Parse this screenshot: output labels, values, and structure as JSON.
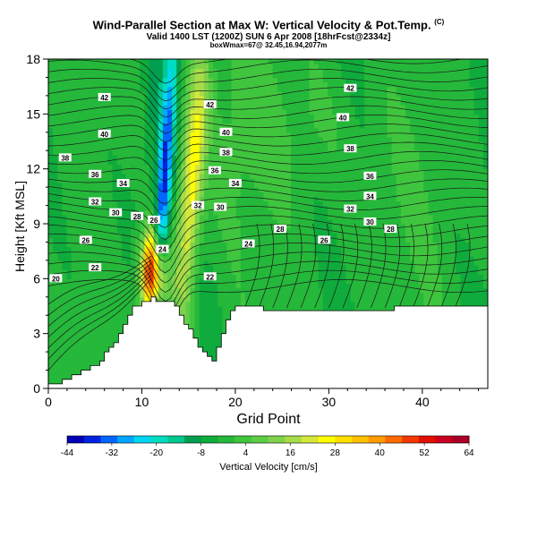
{
  "title": "Wind-Parallel Section at Max W: Vertical Velocity & Pot.Temp.",
  "title_mark": "(C)",
  "subtitle": "Valid 1400 LST (1200Z) SUN 6 Apr 2008 [18hrFcst@2334z]",
  "subtitle2": "boxWmax=67@ 32.45,16.94,2077m",
  "chart_data": {
    "type": "heatmap",
    "xlabel": "Grid Point",
    "ylabel": "Height [Kft MSL]",
    "xlim": [
      0,
      47
    ],
    "ylim": [
      0,
      18
    ],
    "x_ticks": [
      "0",
      "10",
      "20",
      "30",
      "40"
    ],
    "y_ticks": [
      "0",
      "3",
      "6",
      "9",
      "12",
      "15",
      "18"
    ],
    "grid": false,
    "colorbar": {
      "label": "Vertical Velocity [cm/s]",
      "range": [
        -44,
        64
      ],
      "ticks": [
        "-44",
        "-32",
        "-20",
        "-8",
        "4",
        "16",
        "28",
        "40",
        "52",
        "64"
      ],
      "colors": [
        "#0000b4",
        "#0022e0",
        "#0066ff",
        "#00a6ff",
        "#00d6f0",
        "#00dcc0",
        "#00c890",
        "#009f50",
        "#0fab3c",
        "#25b83a",
        "#3fc53e",
        "#5ccd45",
        "#7ed34a",
        "#a8dc48",
        "#d4e83a",
        "#ffff00",
        "#ffe000",
        "#ffc000",
        "#ff9a00",
        "#ff6a00",
        "#f23a00",
        "#e10f00",
        "#c8001e",
        "#aa0028"
      ]
    },
    "contour_variable": "Potential temperature",
    "contour_labels": [
      {
        "x": 6,
        "y": 15.9,
        "v": "42"
      },
      {
        "x": 17.3,
        "y": 15.5,
        "v": "42"
      },
      {
        "x": 32.3,
        "y": 16.4,
        "v": "42"
      },
      {
        "x": 6,
        "y": 13.9,
        "v": "40"
      },
      {
        "x": 19,
        "y": 14.0,
        "v": "40"
      },
      {
        "x": 31.5,
        "y": 14.8,
        "v": "40"
      },
      {
        "x": 1.8,
        "y": 12.6,
        "v": "38"
      },
      {
        "x": 19,
        "y": 12.9,
        "v": "38"
      },
      {
        "x": 32.3,
        "y": 13.1,
        "v": "38"
      },
      {
        "x": 5,
        "y": 11.7,
        "v": "36"
      },
      {
        "x": 17.8,
        "y": 11.9,
        "v": "36"
      },
      {
        "x": 34.4,
        "y": 11.6,
        "v": "36"
      },
      {
        "x": 8,
        "y": 11.2,
        "v": "34"
      },
      {
        "x": 20,
        "y": 11.2,
        "v": "34"
      },
      {
        "x": 34.4,
        "y": 10.5,
        "v": "34"
      },
      {
        "x": 5,
        "y": 10.2,
        "v": "32"
      },
      {
        "x": 16,
        "y": 10.0,
        "v": "32"
      },
      {
        "x": 32.3,
        "y": 9.8,
        "v": "32"
      },
      {
        "x": 7.2,
        "y": 9.6,
        "v": "30"
      },
      {
        "x": 18.4,
        "y": 9.9,
        "v": "30"
      },
      {
        "x": 34.4,
        "y": 9.1,
        "v": "30"
      },
      {
        "x": 9.5,
        "y": 9.4,
        "v": "28"
      },
      {
        "x": 24.8,
        "y": 8.7,
        "v": "28"
      },
      {
        "x": 36.6,
        "y": 8.7,
        "v": "28"
      },
      {
        "x": 4,
        "y": 8.1,
        "v": "26"
      },
      {
        "x": 11.3,
        "y": 9.2,
        "v": "26"
      },
      {
        "x": 29.5,
        "y": 8.1,
        "v": "26"
      },
      {
        "x": 12.2,
        "y": 7.6,
        "v": "24"
      },
      {
        "x": 21.4,
        "y": 7.9,
        "v": "24"
      },
      {
        "x": 5,
        "y": 6.6,
        "v": "22"
      },
      {
        "x": 17.3,
        "y": 6.1,
        "v": "22"
      },
      {
        "x": 0.8,
        "y": 6.0,
        "v": "20"
      }
    ]
  }
}
